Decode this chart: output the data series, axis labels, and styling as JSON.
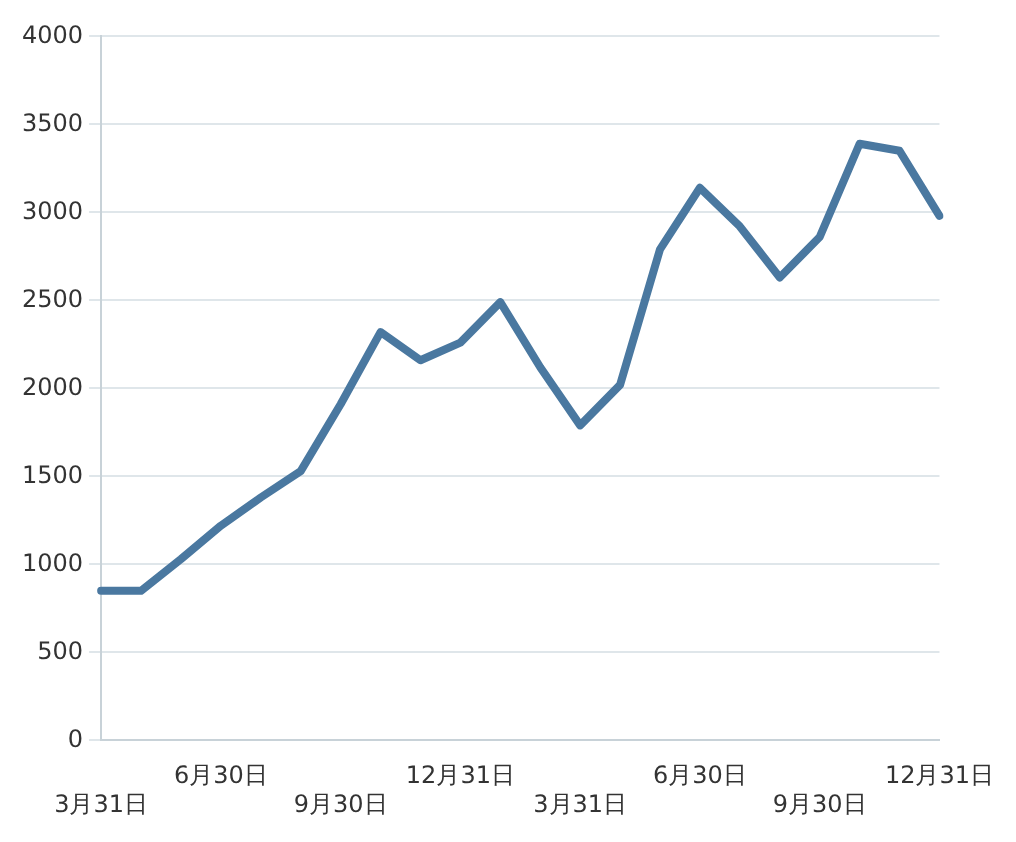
{
  "chart_data": {
    "type": "line",
    "categories": [
      "3月31日",
      null,
      null,
      "6月30日",
      null,
      null,
      "9月30日",
      null,
      null,
      "12月31日",
      null,
      null,
      "3月31日",
      null,
      null,
      "6月30日",
      null,
      null,
      "9月30日",
      null,
      null,
      "12月31日"
    ],
    "series": [
      {
        "color": "#4a78a0",
        "values": [
          850,
          850,
          1030,
          1220,
          1380,
          1530,
          1910,
          2320,
          2160,
          2260,
          2490,
          2120,
          1790,
          2020,
          2790,
          3140,
          2920,
          2630,
          2860,
          3390,
          3350,
          2980
        ]
      }
    ],
    "ylim": [
      0,
      4000
    ],
    "yticks": [
      0,
      500,
      1000,
      1500,
      2000,
      2500,
      3000,
      3500,
      4000
    ],
    "grid": "y",
    "legend": false,
    "marker": "none",
    "line_style": "solid"
  }
}
